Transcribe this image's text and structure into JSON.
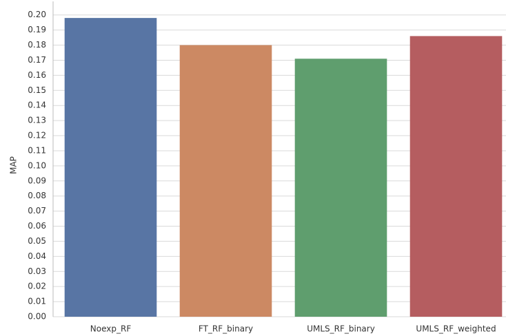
{
  "chart_data": {
    "type": "bar",
    "y_label": "MAP",
    "categories": [
      "Noexp_RF",
      "FT_RF_binary",
      "UMLS_RF_binary",
      "UMLS_RF_weighted"
    ],
    "values": [
      0.198,
      0.18,
      0.171,
      0.186
    ],
    "colors": [
      "#5875a4",
      "#cc8963",
      "#5f9e6e",
      "#b55d60"
    ],
    "ylim": [
      0,
      0.209
    ],
    "yticks": [
      {
        "value": 0,
        "label": "0.00"
      },
      0.01,
      0.02,
      0.03,
      0.04,
      0.05,
      0.06,
      0.07,
      0.08,
      0.09,
      {
        "value": 0.1,
        "label": "0.10"
      },
      0.11,
      0.12,
      0.13,
      0.14,
      0.15,
      0.16,
      0.17,
      0.18,
      0.19,
      {
        "value": 0.2,
        "label": "0.20"
      }
    ],
    "grid": true
  }
}
